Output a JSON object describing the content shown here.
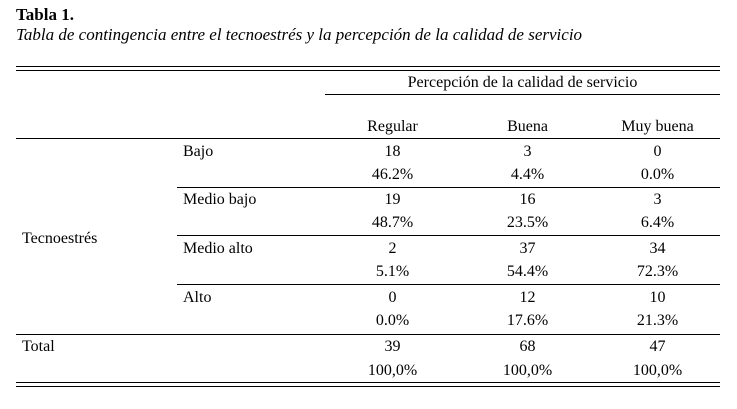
{
  "caption": {
    "label": "Tabla 1.",
    "title": "Tabla de contingencia entre el tecnoestrés y la percepción de la calidad de servicio"
  },
  "table": {
    "group_header": "Percepción de la calidad de servicio",
    "columns": [
      "Regular",
      "Buena",
      "Muy buena"
    ],
    "row_group_label": "Tecnoestrés",
    "rows": [
      {
        "label": "Bajo",
        "counts": [
          "18",
          "3",
          "0"
        ],
        "percents": [
          "46.2%",
          "4.4%",
          "0.0%"
        ]
      },
      {
        "label": "Medio bajo",
        "counts": [
          "19",
          "16",
          "3"
        ],
        "percents": [
          "48.7%",
          "23.5%",
          "6.4%"
        ]
      },
      {
        "label": "Medio alto",
        "counts": [
          "2",
          "37",
          "34"
        ],
        "percents": [
          "5.1%",
          "54.4%",
          "72.3%"
        ]
      },
      {
        "label": "Alto",
        "counts": [
          "0",
          "12",
          "10"
        ],
        "percents": [
          "0.0%",
          "17.6%",
          "21.3%"
        ]
      }
    ],
    "total": {
      "label": "Total",
      "counts": [
        "39",
        "68",
        "47"
      ],
      "percents": [
        "100,0%",
        "100,0%",
        "100,0%"
      ]
    }
  }
}
